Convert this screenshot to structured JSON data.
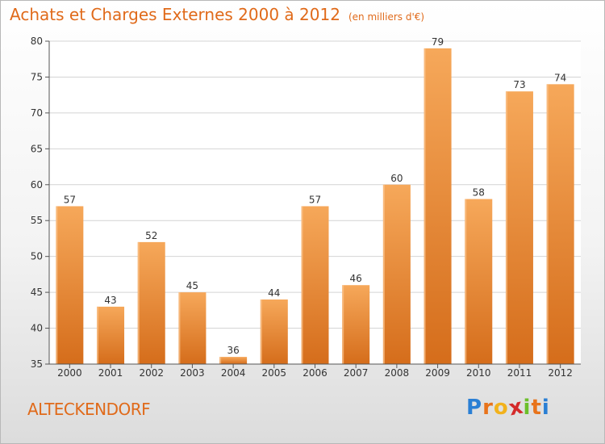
{
  "title": "Achats et Charges Externes 2000 à 2012",
  "unit": "(en milliers d'€)",
  "commune": "ALTECKENDORF",
  "logo": [
    "P",
    "r",
    "o",
    "x",
    "i",
    "t",
    "i"
  ],
  "logo_colors": [
    "#2a7fd4",
    "#e8731b",
    "#f2b21c",
    "#d42a2a",
    "#6cbf2a",
    "#e8731b",
    "#2a7fd4"
  ],
  "colors": {
    "bar_light": "#f6a85a",
    "bar_dark": "#d9701d",
    "text": "#e06a1a"
  },
  "chart_data": {
    "type": "bar",
    "categories": [
      "2000",
      "2001",
      "2002",
      "2003",
      "2004",
      "2005",
      "2006",
      "2007",
      "2008",
      "2009",
      "2010",
      "2011",
      "2012"
    ],
    "values": [
      57,
      43,
      52,
      45,
      36,
      44,
      57,
      46,
      60,
      79,
      58,
      73,
      74
    ],
    "title": "Achats et Charges Externes 2000 à 2012",
    "ylim": [
      35,
      80
    ],
    "yticks": [
      35,
      40,
      45,
      50,
      55,
      60,
      65,
      70,
      75,
      80
    ],
    "grid": true
  }
}
